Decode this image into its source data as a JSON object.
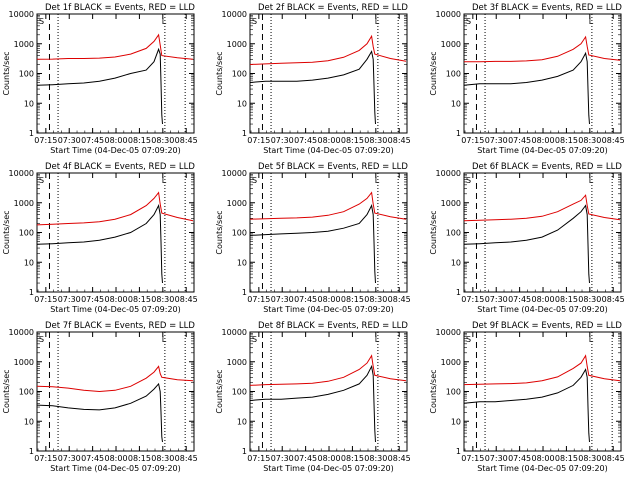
{
  "colors": {
    "events": "#000000",
    "lld": "#dd0000",
    "background": "#ffffff"
  },
  "common": {
    "ylabel": "Counts/sec",
    "xlabel": "Start Time (04-Dec-05 07:09:20)",
    "x_tick_labels": [
      "07:15",
      "07:30",
      "07:45",
      "08:00",
      "08:15",
      "08:30",
      "08:45"
    ],
    "y_tick_labels": [
      "1",
      "10",
      "100",
      "1000",
      "10000"
    ],
    "y_scale": "log",
    "ylim": [
      1,
      10000
    ],
    "xlim": [
      "07:09:20",
      "08:50:00"
    ],
    "markers": {
      "S": "S",
      "L": "L"
    }
  },
  "chart_data": [
    {
      "type": "line",
      "title": "Det 1f BLACK = Events, RED = LLD",
      "series": [
        {
          "key": "events",
          "points": [
            [
              0,
              40
            ],
            [
              10,
              42
            ],
            [
              20,
              45
            ],
            [
              30,
              48
            ],
            [
              40,
              55
            ],
            [
              50,
              70
            ],
            [
              60,
              100
            ],
            [
              70,
              130
            ],
            [
              75,
              250
            ],
            [
              78,
              650
            ],
            [
              79,
              450
            ],
            [
              79.5,
              50
            ],
            [
              80,
              4
            ],
            [
              80.5,
              2
            ]
          ]
        },
        {
          "key": "lld",
          "points": [
            [
              0,
              300
            ],
            [
              10,
              305
            ],
            [
              20,
              320
            ],
            [
              30,
              320
            ],
            [
              40,
              330
            ],
            [
              50,
              360
            ],
            [
              60,
              450
            ],
            [
              70,
              700
            ],
            [
              75,
              1200
            ],
            [
              78,
              2000
            ],
            [
              79,
              900
            ],
            [
              80,
              400
            ],
            [
              90,
              340
            ],
            [
              100,
              300
            ]
          ]
        }
      ]
    },
    {
      "type": "line",
      "title": "Det 2f BLACK = Events, RED = LLD",
      "series": [
        {
          "key": "events",
          "points": [
            [
              0,
              50
            ],
            [
              10,
              55
            ],
            [
              20,
              55
            ],
            [
              30,
              55
            ],
            [
              40,
              60
            ],
            [
              50,
              70
            ],
            [
              60,
              90
            ],
            [
              70,
              140
            ],
            [
              75,
              300
            ],
            [
              78,
              550
            ],
            [
              79,
              300
            ],
            [
              79.5,
              40
            ],
            [
              80,
              5
            ],
            [
              80.5,
              2
            ]
          ]
        },
        {
          "key": "lld",
          "points": [
            [
              0,
              200
            ],
            [
              10,
              210
            ],
            [
              20,
              220
            ],
            [
              30,
              230
            ],
            [
              40,
              240
            ],
            [
              50,
              270
            ],
            [
              60,
              350
            ],
            [
              70,
              600
            ],
            [
              75,
              1000
            ],
            [
              78,
              1800
            ],
            [
              79,
              800
            ],
            [
              80,
              450
            ],
            [
              90,
              320
            ],
            [
              100,
              260
            ]
          ]
        }
      ]
    },
    {
      "type": "line",
      "title": "Det 3f BLACK = Events, RED = LLD",
      "series": [
        {
          "key": "events",
          "points": [
            [
              0,
              40
            ],
            [
              10,
              45
            ],
            [
              20,
              45
            ],
            [
              30,
              45
            ],
            [
              40,
              50
            ],
            [
              50,
              60
            ],
            [
              60,
              80
            ],
            [
              70,
              130
            ],
            [
              75,
              250
            ],
            [
              78,
              480
            ],
            [
              79,
              250
            ],
            [
              79.5,
              30
            ],
            [
              80,
              4
            ],
            [
              80.5,
              2
            ]
          ]
        },
        {
          "key": "lld",
          "points": [
            [
              0,
              250
            ],
            [
              10,
              250
            ],
            [
              20,
              255
            ],
            [
              30,
              255
            ],
            [
              40,
              265
            ],
            [
              50,
              290
            ],
            [
              60,
              380
            ],
            [
              70,
              650
            ],
            [
              75,
              1000
            ],
            [
              78,
              1700
            ],
            [
              79,
              800
            ],
            [
              80,
              420
            ],
            [
              90,
              320
            ],
            [
              100,
              280
            ]
          ]
        }
      ]
    },
    {
      "type": "line",
      "title": "Det 4f BLACK = Events, RED = LLD",
      "series": [
        {
          "key": "events",
          "points": [
            [
              0,
              40
            ],
            [
              10,
              42
            ],
            [
              20,
              45
            ],
            [
              30,
              48
            ],
            [
              40,
              55
            ],
            [
              50,
              70
            ],
            [
              60,
              100
            ],
            [
              70,
              200
            ],
            [
              75,
              400
            ],
            [
              78,
              800
            ],
            [
              79,
              400
            ],
            [
              79.5,
              50
            ],
            [
              80,
              4
            ],
            [
              80.5,
              2
            ]
          ]
        },
        {
          "key": "lld",
          "points": [
            [
              0,
              180
            ],
            [
              10,
              190
            ],
            [
              20,
              200
            ],
            [
              30,
              210
            ],
            [
              40,
              230
            ],
            [
              50,
              280
            ],
            [
              60,
              400
            ],
            [
              70,
              800
            ],
            [
              75,
              1400
            ],
            [
              78,
              2200
            ],
            [
              79,
              900
            ],
            [
              80,
              450
            ],
            [
              90,
              320
            ],
            [
              100,
              250
            ]
          ]
        }
      ]
    },
    {
      "type": "line",
      "title": "Det 5f BLACK = Events, RED = LLD",
      "series": [
        {
          "key": "events",
          "points": [
            [
              0,
              80
            ],
            [
              10,
              85
            ],
            [
              20,
              90
            ],
            [
              30,
              95
            ],
            [
              40,
              100
            ],
            [
              50,
              110
            ],
            [
              60,
              140
            ],
            [
              70,
              200
            ],
            [
              75,
              400
            ],
            [
              78,
              800
            ],
            [
              79,
              400
            ],
            [
              79.5,
              50
            ],
            [
              80,
              5
            ],
            [
              80.5,
              2
            ]
          ]
        },
        {
          "key": "lld",
          "points": [
            [
              0,
              280
            ],
            [
              10,
              290
            ],
            [
              20,
              300
            ],
            [
              30,
              310
            ],
            [
              40,
              330
            ],
            [
              50,
              380
            ],
            [
              60,
              500
            ],
            [
              70,
              900
            ],
            [
              75,
              1400
            ],
            [
              78,
              2200
            ],
            [
              79,
              900
            ],
            [
              80,
              450
            ],
            [
              90,
              340
            ],
            [
              100,
              280
            ]
          ]
        }
      ]
    },
    {
      "type": "line",
      "title": "Det 6f BLACK = Events, RED = LLD",
      "series": [
        {
          "key": "events",
          "points": [
            [
              0,
              40
            ],
            [
              10,
              42
            ],
            [
              20,
              45
            ],
            [
              30,
              48
            ],
            [
              40,
              55
            ],
            [
              50,
              70
            ],
            [
              60,
              120
            ],
            [
              70,
              300
            ],
            [
              75,
              500
            ],
            [
              78,
              800
            ],
            [
              79,
              400
            ],
            [
              79.5,
              40
            ],
            [
              80,
              4
            ],
            [
              80.5,
              2
            ]
          ]
        },
        {
          "key": "lld",
          "points": [
            [
              0,
              250
            ],
            [
              10,
              260
            ],
            [
              20,
              270
            ],
            [
              30,
              280
            ],
            [
              40,
              300
            ],
            [
              50,
              350
            ],
            [
              60,
              500
            ],
            [
              70,
              900
            ],
            [
              75,
              1200
            ],
            [
              78,
              1800
            ],
            [
              79,
              800
            ],
            [
              80,
              420
            ],
            [
              90,
              320
            ],
            [
              100,
              270
            ]
          ]
        }
      ]
    },
    {
      "type": "line",
      "title": "Det 7f BLACK = Events, RED = LLD",
      "series": [
        {
          "key": "events",
          "points": [
            [
              0,
              35
            ],
            [
              10,
              33
            ],
            [
              20,
              28
            ],
            [
              30,
              25
            ],
            [
              40,
              24
            ],
            [
              50,
              28
            ],
            [
              60,
              40
            ],
            [
              70,
              70
            ],
            [
              75,
              120
            ],
            [
              78,
              180
            ],
            [
              79,
              100
            ],
            [
              79.5,
              20
            ],
            [
              80,
              3
            ],
            [
              80.5,
              2
            ]
          ]
        },
        {
          "key": "lld",
          "points": [
            [
              0,
              150
            ],
            [
              10,
              145
            ],
            [
              20,
              130
            ],
            [
              30,
              110
            ],
            [
              40,
              100
            ],
            [
              50,
              110
            ],
            [
              60,
              150
            ],
            [
              70,
              280
            ],
            [
              75,
              450
            ],
            [
              78,
              700
            ],
            [
              79,
              400
            ],
            [
              80,
              300
            ],
            [
              90,
              250
            ],
            [
              100,
              230
            ]
          ]
        }
      ]
    },
    {
      "type": "line",
      "title": "Det 8f BLACK = Events, RED = LLD",
      "series": [
        {
          "key": "events",
          "points": [
            [
              0,
              50
            ],
            [
              10,
              55
            ],
            [
              20,
              55
            ],
            [
              30,
              60
            ],
            [
              40,
              65
            ],
            [
              50,
              80
            ],
            [
              60,
              110
            ],
            [
              70,
              180
            ],
            [
              75,
              350
            ],
            [
              78,
              700
            ],
            [
              79,
              350
            ],
            [
              79.5,
              40
            ],
            [
              80,
              5
            ],
            [
              80.5,
              2
            ]
          ]
        },
        {
          "key": "lld",
          "points": [
            [
              0,
              160
            ],
            [
              10,
              170
            ],
            [
              20,
              175
            ],
            [
              30,
              180
            ],
            [
              40,
              190
            ],
            [
              50,
              220
            ],
            [
              60,
              300
            ],
            [
              70,
              550
            ],
            [
              75,
              900
            ],
            [
              78,
              1600
            ],
            [
              79,
              700
            ],
            [
              80,
              350
            ],
            [
              90,
              270
            ],
            [
              100,
              230
            ]
          ]
        }
      ]
    },
    {
      "type": "line",
      "title": "Det 9f BLACK = Events, RED = LLD",
      "series": [
        {
          "key": "events",
          "points": [
            [
              0,
              40
            ],
            [
              10,
              45
            ],
            [
              20,
              45
            ],
            [
              30,
              50
            ],
            [
              40,
              55
            ],
            [
              50,
              65
            ],
            [
              60,
              90
            ],
            [
              70,
              160
            ],
            [
              75,
              300
            ],
            [
              78,
              550
            ],
            [
              79,
              300
            ],
            [
              79.5,
              30
            ],
            [
              80,
              4
            ],
            [
              80.5,
              2
            ]
          ]
        },
        {
          "key": "lld",
          "points": [
            [
              0,
              170
            ],
            [
              10,
              175
            ],
            [
              20,
              180
            ],
            [
              30,
              185
            ],
            [
              40,
              195
            ],
            [
              50,
              230
            ],
            [
              60,
              310
            ],
            [
              70,
              600
            ],
            [
              75,
              900
            ],
            [
              78,
              1600
            ],
            [
              79,
              700
            ],
            [
              80,
              350
            ],
            [
              90,
              270
            ],
            [
              100,
              230
            ]
          ]
        }
      ]
    }
  ]
}
